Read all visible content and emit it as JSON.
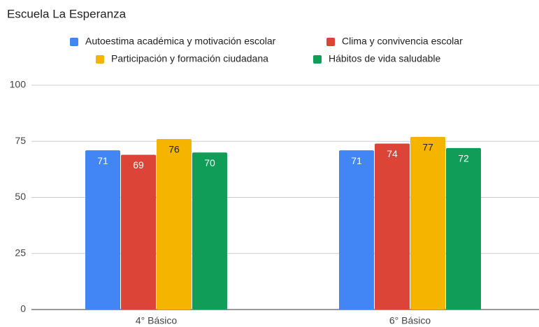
{
  "chart_data": {
    "type": "bar",
    "title": "Escuela La Esperanza",
    "categories": [
      "4° Básico",
      "6° Básico"
    ],
    "series": [
      {
        "name": "Autoestima académica y motivación escolar",
        "color": "#4285f4",
        "values": [
          71,
          71
        ]
      },
      {
        "name": "Clima y convivencia escolar",
        "color": "#db4437",
        "values": [
          69,
          74
        ]
      },
      {
        "name": "Participación y formación ciudadana",
        "color": "#f4b400",
        "values": [
          76,
          77
        ]
      },
      {
        "name": "Hábitos de vida saludable",
        "color": "#0f9d58",
        "values": [
          70,
          72
        ]
      }
    ],
    "ylim": [
      0,
      100
    ],
    "yticks": [
      0,
      25,
      50,
      75,
      100
    ],
    "grid": true,
    "legend": "top"
  }
}
